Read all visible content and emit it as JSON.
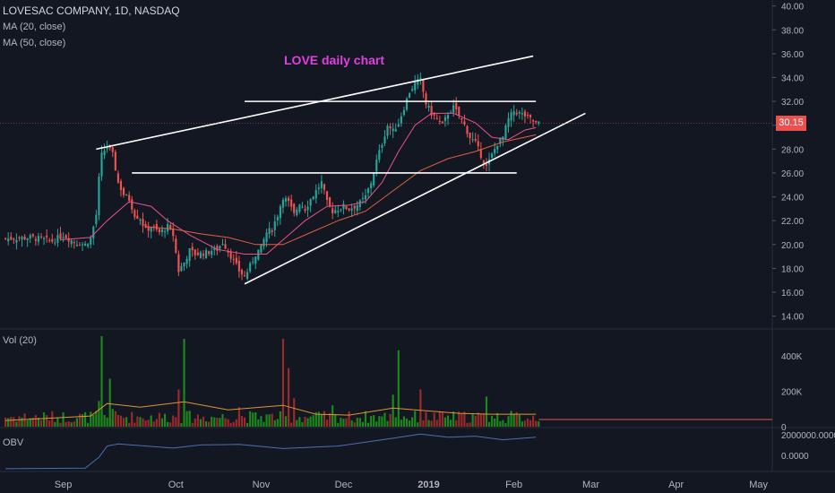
{
  "header": {
    "symbol": "LOVESAC COMPANY, 1D, NASDAQ",
    "ma20_label": "MA (20, close)",
    "ma50_label": "MA (50, close)",
    "annotation": "LOVE daily chart"
  },
  "price_badge": "30.15",
  "vol_panel_label": "Vol (20)",
  "obv_panel_label": "OBV",
  "colors": {
    "up": "#26a69a",
    "down": "#ef5350",
    "vol_up": "#1b8a1b",
    "vol_down": "#9b2a2a",
    "ma20": "#e8528a",
    "ma50": "#e06040",
    "vol_ma": "#e0923a",
    "obv": "#4a6fb3",
    "annotation": "#e040e0",
    "badge": "#e8514f",
    "trendline": "#ffffff"
  },
  "chart_data": {
    "type": "candlestick",
    "price_axis": {
      "ticks": [
        "40.00",
        "38.00",
        "36.00",
        "34.00",
        "32.00",
        "30.00",
        "28.00",
        "26.00",
        "24.00",
        "22.00",
        "20.00",
        "18.00",
        "16.00",
        "14.00"
      ],
      "range": [
        13,
        40.5
      ]
    },
    "x_axis": {
      "ticks": [
        "Sep",
        "Oct",
        "Nov",
        "Dec",
        "2019",
        "Feb",
        "Mar",
        "Apr",
        "May"
      ],
      "tick_days": [
        20,
        61,
        92,
        122,
        153,
        184,
        212,
        243,
        273
      ]
    },
    "volume_axis": {
      "ticks": [
        "400K",
        "200K",
        "0"
      ],
      "values": [
        400000,
        200000,
        0
      ],
      "max": 525000
    },
    "obv_axis": {
      "ticks": [
        "2000000.0000",
        "0.0000"
      ],
      "values": [
        2000000,
        0
      ],
      "range": [
        -1400000,
        2600000
      ]
    },
    "last_price": 30.15,
    "price_path": [
      [
        0,
        20.5
      ],
      [
        8,
        20.6
      ],
      [
        16,
        20.3
      ],
      [
        20,
        20.8
      ],
      [
        24,
        20.2
      ],
      [
        28,
        20.0
      ],
      [
        30,
        20.5
      ],
      [
        32,
        22.5
      ],
      [
        33,
        25.5
      ],
      [
        34,
        27.5
      ],
      [
        36,
        28.3
      ],
      [
        38,
        27.5
      ],
      [
        40,
        25.2
      ],
      [
        42,
        24.2
      ],
      [
        44,
        23.8
      ],
      [
        46,
        22.5
      ],
      [
        48,
        22.2
      ],
      [
        50,
        21.2
      ],
      [
        52,
        21.5
      ],
      [
        55,
        21.0
      ],
      [
        58,
        21.5
      ],
      [
        60,
        20.8
      ],
      [
        62,
        17.8
      ],
      [
        64,
        18.5
      ],
      [
        66,
        19.5
      ],
      [
        68,
        19.2
      ],
      [
        72,
        19.3
      ],
      [
        74,
        19.5
      ],
      [
        76,
        19.6
      ],
      [
        78,
        20.2
      ],
      [
        80,
        19.5
      ],
      [
        82,
        18.6
      ],
      [
        84,
        17.8
      ],
      [
        86,
        17.3
      ],
      [
        88,
        18.2
      ],
      [
        90,
        19.2
      ],
      [
        92,
        19.8
      ],
      [
        94,
        21.0
      ],
      [
        96,
        21.3
      ],
      [
        98,
        22.5
      ],
      [
        100,
        24.0
      ],
      [
        102,
        23.5
      ],
      [
        104,
        22.5
      ],
      [
        106,
        23.5
      ],
      [
        108,
        23.0
      ],
      [
        110,
        23.8
      ],
      [
        112,
        24.5
      ],
      [
        114,
        25.2
      ],
      [
        116,
        23.5
      ],
      [
        118,
        22.8
      ],
      [
        120,
        23.0
      ],
      [
        122,
        23.2
      ],
      [
        124,
        23.0
      ],
      [
        126,
        23.2
      ],
      [
        128,
        23.5
      ],
      [
        130,
        24.0
      ],
      [
        132,
        25.2
      ],
      [
        134,
        27.0
      ],
      [
        136,
        28.5
      ],
      [
        138,
        30.0
      ],
      [
        140,
        29.5
      ],
      [
        142,
        30.2
      ],
      [
        144,
        31.5
      ],
      [
        146,
        32.8
      ],
      [
        148,
        33.5
      ],
      [
        150,
        33.8
      ],
      [
        152,
        31.8
      ],
      [
        154,
        31.0
      ],
      [
        156,
        30.5
      ],
      [
        158,
        30.0
      ],
      [
        160,
        31.0
      ],
      [
        162,
        31.5
      ],
      [
        164,
        30.8
      ],
      [
        166,
        30.0
      ],
      [
        168,
        29.0
      ],
      [
        170,
        28.5
      ],
      [
        172,
        27.5
      ],
      [
        174,
        26.5
      ],
      [
        176,
        27.5
      ],
      [
        178,
        28.5
      ],
      [
        180,
        29.0
      ],
      [
        182,
        30.5
      ],
      [
        184,
        31.2
      ],
      [
        186,
        31.0
      ],
      [
        188,
        30.8
      ],
      [
        190,
        30.5
      ],
      [
        192,
        30.15
      ]
    ],
    "days_span": [
      -1,
      193
    ],
    "series": [
      {
        "name": "MA (20, close)",
        "path": [
          [
            19,
            20.4
          ],
          [
            30,
            20.6
          ],
          [
            36,
            22.0
          ],
          [
            44,
            23.6
          ],
          [
            52,
            23.2
          ],
          [
            58,
            22.0
          ],
          [
            66,
            20.8
          ],
          [
            76,
            19.6
          ],
          [
            86,
            19.2
          ],
          [
            94,
            19.2
          ],
          [
            100,
            20.4
          ],
          [
            108,
            22.0
          ],
          [
            116,
            23.2
          ],
          [
            124,
            23.3
          ],
          [
            130,
            23.6
          ],
          [
            136,
            25.2
          ],
          [
            142,
            27.8
          ],
          [
            148,
            30.0
          ],
          [
            154,
            31.0
          ],
          [
            162,
            31.0
          ],
          [
            170,
            30.2
          ],
          [
            176,
            29.0
          ],
          [
            182,
            28.8
          ],
          [
            188,
            29.6
          ],
          [
            192,
            29.8
          ]
        ]
      },
      {
        "name": "MA (50, close)",
        "path": [
          [
            50,
            21.5
          ],
          [
            60,
            21.3
          ],
          [
            70,
            20.9
          ],
          [
            80,
            20.6
          ],
          [
            90,
            20.0
          ],
          [
            100,
            20.0
          ],
          [
            110,
            21.0
          ],
          [
            120,
            22.0
          ],
          [
            130,
            22.8
          ],
          [
            140,
            24.5
          ],
          [
            150,
            26.2
          ],
          [
            160,
            27.2
          ],
          [
            170,
            27.8
          ],
          [
            180,
            28.6
          ],
          [
            192,
            29.2
          ]
        ]
      }
    ],
    "trendlines": [
      {
        "from": [
          32,
          28.0
        ],
        "to": [
          191,
          35.8
        ]
      },
      {
        "from": [
          45,
          26.0
        ],
        "to": [
          185,
          26.0
        ]
      },
      {
        "from": [
          86,
          32.0
        ],
        "to": [
          192,
          32.0
        ]
      },
      {
        "from": [
          86,
          16.7
        ],
        "to": [
          210,
          31.0
        ]
      }
    ],
    "volume_spikes": [
      {
        "day": 33,
        "value": 145000,
        "dir": "up"
      },
      {
        "day": 34,
        "value": 510000,
        "dir": "up"
      },
      {
        "day": 37,
        "value": 270000,
        "dir": "up"
      },
      {
        "day": 38,
        "value": 100000,
        "dir": "up"
      },
      {
        "day": 62,
        "value": 210000,
        "dir": "down"
      },
      {
        "day": 64,
        "value": 495000,
        "dir": "up"
      },
      {
        "day": 84,
        "value": 110000,
        "dir": "down"
      },
      {
        "day": 100,
        "value": 495000,
        "dir": "down"
      },
      {
        "day": 102,
        "value": 330000,
        "dir": "down"
      },
      {
        "day": 104,
        "value": 160000,
        "dir": "down"
      },
      {
        "day": 118,
        "value": 120000,
        "dir": "up"
      },
      {
        "day": 140,
        "value": 180000,
        "dir": "up"
      },
      {
        "day": 142,
        "value": 430000,
        "dir": "up"
      },
      {
        "day": 150,
        "value": 210000,
        "dir": "down"
      },
      {
        "day": 174,
        "value": 170000,
        "dir": "up"
      }
    ],
    "volume_ma_path": [
      [
        -1,
        35000
      ],
      [
        30,
        60000
      ],
      [
        36,
        130000
      ],
      [
        48,
        110000
      ],
      [
        64,
        140000
      ],
      [
        80,
        95000
      ],
      [
        100,
        120000
      ],
      [
        112,
        70000
      ],
      [
        124,
        65000
      ],
      [
        140,
        105000
      ],
      [
        152,
        90000
      ],
      [
        164,
        75000
      ],
      [
        176,
        70000
      ],
      [
        192,
        70000
      ]
    ],
    "obv_path": [
      [
        -1,
        -1300000
      ],
      [
        28,
        -1250000
      ],
      [
        33,
        -200000
      ],
      [
        36,
        900000
      ],
      [
        40,
        1100000
      ],
      [
        60,
        700000
      ],
      [
        70,
        1000000
      ],
      [
        84,
        1050000
      ],
      [
        100,
        650000
      ],
      [
        120,
        900000
      ],
      [
        140,
        1650000
      ],
      [
        150,
        2050000
      ],
      [
        160,
        1750000
      ],
      [
        170,
        1850000
      ],
      [
        180,
        1500000
      ],
      [
        192,
        1750000
      ]
    ]
  }
}
